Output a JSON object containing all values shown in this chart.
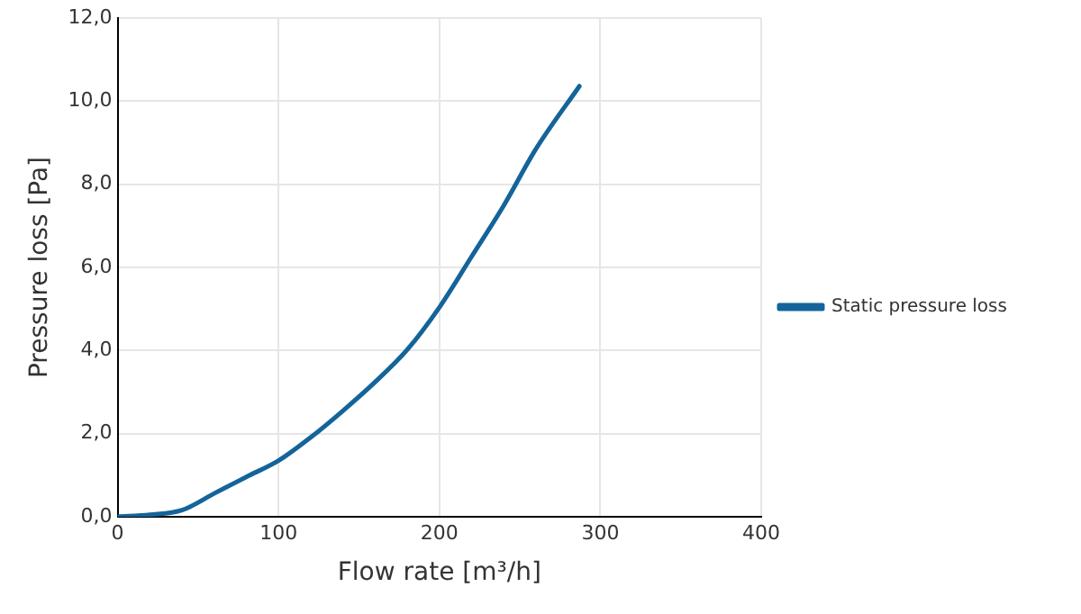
{
  "chart_data": {
    "type": "line",
    "xlabel": "Flow rate [m³/h]",
    "ylabel": "Pressure loss [Pa]",
    "x": [
      0,
      20,
      40,
      60,
      80,
      100,
      120,
      140,
      160,
      180,
      200,
      220,
      240,
      260,
      287
    ],
    "series": [
      {
        "name": "Static pressure loss",
        "color": "#14649a",
        "values": [
          0,
          0.05,
          0.16,
          0.56,
          0.96,
          1.35,
          1.91,
          2.55,
          3.24,
          4.02,
          5.04,
          6.26,
          7.49,
          8.85,
          10.36
        ]
      }
    ],
    "xlim": [
      0,
      400
    ],
    "xticks": [
      0,
      100,
      200,
      300,
      400
    ],
    "ylim": [
      0,
      12
    ],
    "yticks": [
      {
        "value": 0,
        "label": "0,0"
      },
      {
        "value": 2,
        "label": "2,0"
      },
      {
        "value": 4,
        "label": "4,0"
      },
      {
        "value": 6,
        "label": "6,0"
      },
      {
        "value": 8,
        "label": "8,0"
      },
      {
        "value": 10,
        "label": "10,0"
      },
      {
        "value": 12,
        "label": "12,0"
      }
    ],
    "grid": true,
    "legend": "right",
    "marker": "none",
    "line_style": "solid"
  }
}
